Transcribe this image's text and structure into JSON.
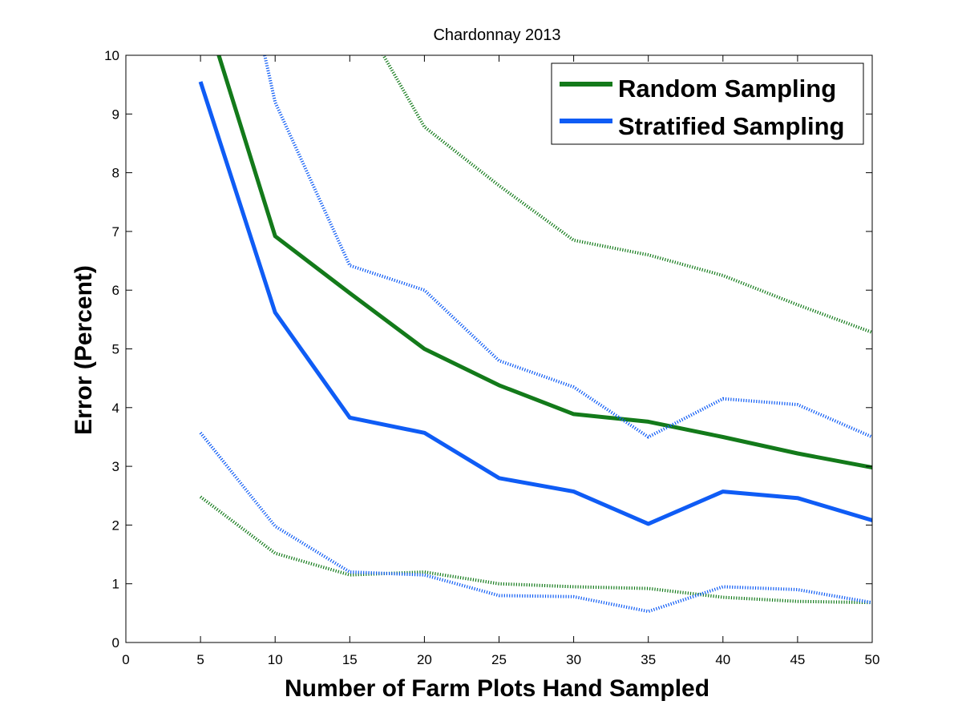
{
  "chart_data": {
    "type": "line",
    "title": "Chardonnay 2013",
    "xlabel": "Number of Farm Plots Hand Sampled",
    "ylabel": "Error (Percent)",
    "xlim": [
      0,
      50
    ],
    "ylim": [
      0,
      10
    ],
    "xticks": [
      0,
      5,
      10,
      15,
      20,
      25,
      30,
      35,
      40,
      45,
      50
    ],
    "yticks": [
      0,
      1,
      2,
      3,
      4,
      5,
      6,
      7,
      8,
      9,
      10
    ],
    "grid": false,
    "legend_position": "top-right",
    "series": [
      {
        "name": "Random Sampling",
        "color": "#137a1a",
        "style": "solid",
        "x": [
          5,
          10,
          15,
          20,
          25,
          30,
          35,
          40,
          45,
          50
        ],
        "y": [
          11.0,
          6.92,
          5.95,
          5.0,
          4.38,
          3.89,
          3.76,
          3.5,
          3.22,
          2.98
        ]
      },
      {
        "name": "Stratified Sampling",
        "color": "#0f5cf5",
        "style": "solid",
        "x": [
          5,
          10,
          15,
          20,
          25,
          30,
          35,
          40,
          45,
          50
        ],
        "y": [
          9.55,
          5.62,
          3.83,
          3.57,
          2.8,
          2.57,
          2.02,
          2.57,
          2.46,
          2.08
        ]
      },
      {
        "color": "#137a1a",
        "style": "dotted",
        "x": [
          15,
          20,
          25,
          30,
          35,
          40,
          45,
          50
        ],
        "y": [
          11.0,
          8.78,
          7.78,
          6.85,
          6.6,
          6.25,
          5.75,
          5.28
        ]
      },
      {
        "color": "#0f5cf5",
        "style": "dotted",
        "x": [
          9.3,
          10,
          15,
          20,
          25,
          30,
          35,
          40,
          45,
          50
        ],
        "y": [
          10.0,
          9.2,
          6.42,
          6.0,
          4.8,
          4.35,
          3.5,
          4.15,
          4.05,
          3.5
        ]
      },
      {
        "color": "#137a1a",
        "style": "dotted",
        "x": [
          5,
          10,
          15,
          20,
          25,
          30,
          35,
          40,
          45,
          50
        ],
        "y": [
          2.48,
          1.52,
          1.15,
          1.2,
          1.0,
          0.95,
          0.92,
          0.77,
          0.7,
          0.68
        ]
      },
      {
        "color": "#0f5cf5",
        "style": "dotted",
        "x": [
          5,
          10,
          15,
          20,
          25,
          30,
          35,
          40,
          45,
          50
        ],
        "y": [
          3.57,
          1.98,
          1.2,
          1.15,
          0.8,
          0.78,
          0.53,
          0.95,
          0.9,
          0.68
        ]
      }
    ]
  }
}
